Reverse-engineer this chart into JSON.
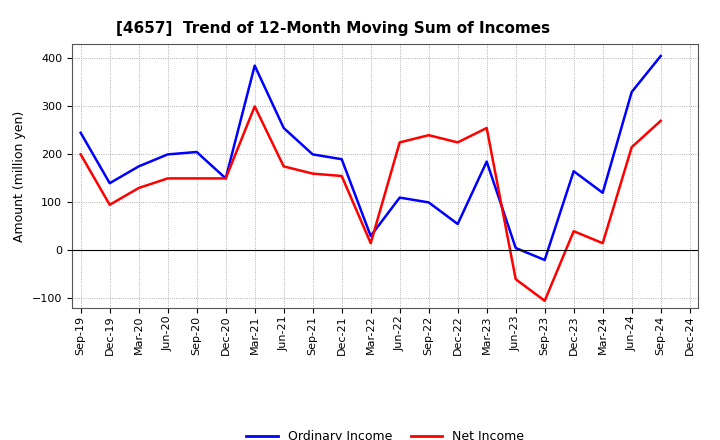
{
  "title": "[4657]  Trend of 12-Month Moving Sum of Incomes",
  "ylabel": "Amount (million yen)",
  "x_labels": [
    "Sep-19",
    "Dec-19",
    "Mar-20",
    "Jun-20",
    "Sep-20",
    "Dec-20",
    "Mar-21",
    "Jun-21",
    "Sep-21",
    "Dec-21",
    "Mar-22",
    "Jun-22",
    "Sep-22",
    "Dec-22",
    "Mar-23",
    "Jun-23",
    "Sep-23",
    "Dec-23",
    "Mar-24",
    "Jun-24",
    "Sep-24",
    "Dec-24"
  ],
  "ordinary_income": [
    245,
    140,
    175,
    200,
    205,
    150,
    385,
    255,
    200,
    190,
    30,
    110,
    100,
    55,
    185,
    5,
    -20,
    165,
    120,
    330,
    405,
    null
  ],
  "net_income": [
    200,
    95,
    130,
    150,
    150,
    150,
    300,
    175,
    160,
    155,
    15,
    225,
    240,
    225,
    255,
    -60,
    -105,
    40,
    15,
    215,
    270,
    null
  ],
  "ordinary_color": "#0000ff",
  "net_color": "#ff0000",
  "ylim": [
    -120,
    430
  ],
  "yticks": [
    -100,
    0,
    100,
    200,
    300,
    400
  ],
  "background_color": "#ffffff",
  "grid_color": "#999999",
  "title_fontsize": 11,
  "axis_fontsize": 9,
  "legend_fontsize": 9,
  "tick_fontsize": 8
}
